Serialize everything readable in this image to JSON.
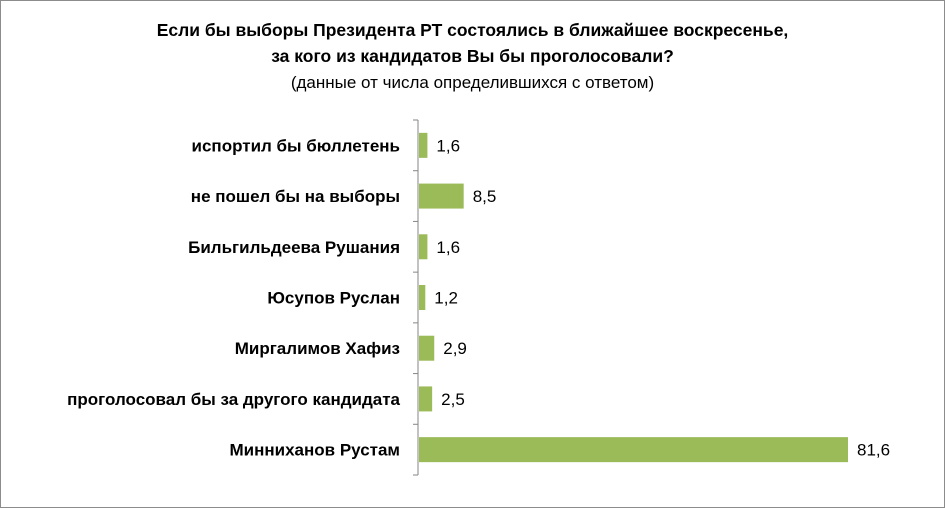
{
  "chart_data": {
    "type": "bar",
    "orientation": "horizontal",
    "title_line1": "Если бы выборы Президента РТ состоялись в ближайшее воскресенье,",
    "title_line2": "за кого из кандидатов Вы бы проголосовали?",
    "subtitle": "(данные от числа определившихся с ответом)",
    "categories": [
      "испортил бы бюллетень",
      "не пошел бы на выборы",
      "Бильгильдеева Рушания",
      "Юсупов Руслан",
      "Миргалимов Хафиз",
      "проголосовал бы за другого кандидата",
      "Минниханов Рустам"
    ],
    "values": [
      1.6,
      8.5,
      1.6,
      1.2,
      2.9,
      2.5,
      81.6
    ],
    "value_labels": [
      "1,6",
      "8,5",
      "1,6",
      "1,2",
      "2,9",
      "2,5",
      "81,6"
    ],
    "xlim": [
      0,
      81.6
    ],
    "bar_color": "#9bbb59",
    "axis_color": "#868686",
    "grid": false,
    "legend": "none"
  }
}
